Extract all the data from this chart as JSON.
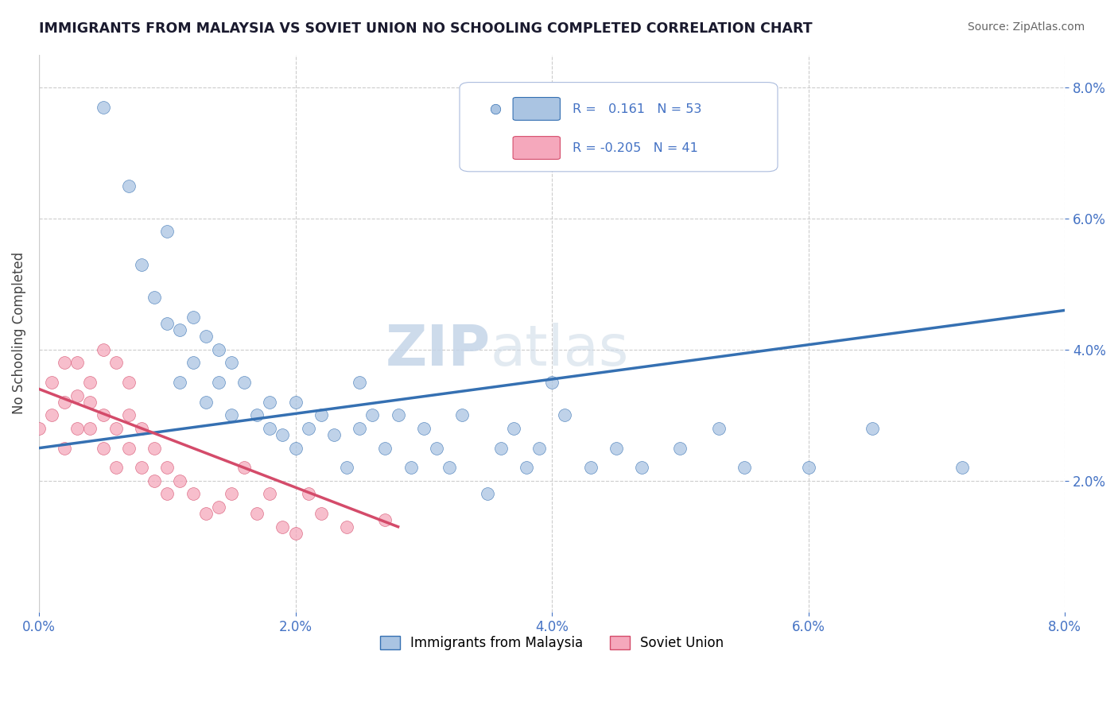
{
  "title": "IMMIGRANTS FROM MALAYSIA VS SOVIET UNION NO SCHOOLING COMPLETED CORRELATION CHART",
  "source": "Source: ZipAtlas.com",
  "ylabel": "No Schooling Completed",
  "xlim": [
    0.0,
    0.08
  ],
  "ylim": [
    0.0,
    0.085
  ],
  "ytick_values": [
    0.02,
    0.04,
    0.06,
    0.08
  ],
  "xtick_values": [
    0.0,
    0.02,
    0.04,
    0.06,
    0.08
  ],
  "legend_labels": [
    "Immigrants from Malaysia",
    "Soviet Union"
  ],
  "r_malaysia": 0.161,
  "n_malaysia": 53,
  "r_soviet": -0.205,
  "n_soviet": 41,
  "malaysia_color": "#aac4e2",
  "soviet_color": "#f5a8bc",
  "malaysia_line_color": "#3570b2",
  "soviet_line_color": "#d44b6a",
  "malaysia_scatter_x": [
    0.005,
    0.007,
    0.008,
    0.009,
    0.01,
    0.01,
    0.011,
    0.011,
    0.012,
    0.012,
    0.013,
    0.013,
    0.014,
    0.014,
    0.015,
    0.015,
    0.016,
    0.017,
    0.018,
    0.018,
    0.019,
    0.02,
    0.02,
    0.021,
    0.022,
    0.023,
    0.024,
    0.025,
    0.025,
    0.026,
    0.027,
    0.028,
    0.029,
    0.03,
    0.031,
    0.032,
    0.033,
    0.035,
    0.036,
    0.037,
    0.038,
    0.039,
    0.04,
    0.041,
    0.043,
    0.045,
    0.047,
    0.05,
    0.053,
    0.055,
    0.06,
    0.065,
    0.072
  ],
  "malaysia_scatter_y": [
    0.077,
    0.065,
    0.053,
    0.048,
    0.044,
    0.058,
    0.035,
    0.043,
    0.038,
    0.045,
    0.032,
    0.042,
    0.035,
    0.04,
    0.03,
    0.038,
    0.035,
    0.03,
    0.028,
    0.032,
    0.027,
    0.025,
    0.032,
    0.028,
    0.03,
    0.027,
    0.022,
    0.035,
    0.028,
    0.03,
    0.025,
    0.03,
    0.022,
    0.028,
    0.025,
    0.022,
    0.03,
    0.018,
    0.025,
    0.028,
    0.022,
    0.025,
    0.035,
    0.03,
    0.022,
    0.025,
    0.022,
    0.025,
    0.028,
    0.022,
    0.022,
    0.028,
    0.022
  ],
  "soviet_scatter_x": [
    0.0,
    0.001,
    0.001,
    0.002,
    0.002,
    0.002,
    0.003,
    0.003,
    0.003,
    0.004,
    0.004,
    0.004,
    0.005,
    0.005,
    0.005,
    0.006,
    0.006,
    0.006,
    0.007,
    0.007,
    0.007,
    0.008,
    0.008,
    0.009,
    0.009,
    0.01,
    0.01,
    0.011,
    0.012,
    0.013,
    0.014,
    0.015,
    0.016,
    0.017,
    0.018,
    0.019,
    0.02,
    0.021,
    0.022,
    0.024,
    0.027
  ],
  "soviet_scatter_y": [
    0.028,
    0.035,
    0.03,
    0.038,
    0.032,
    0.025,
    0.038,
    0.028,
    0.033,
    0.035,
    0.028,
    0.032,
    0.04,
    0.03,
    0.025,
    0.038,
    0.028,
    0.022,
    0.03,
    0.025,
    0.035,
    0.022,
    0.028,
    0.025,
    0.02,
    0.022,
    0.018,
    0.02,
    0.018,
    0.015,
    0.016,
    0.018,
    0.022,
    0.015,
    0.018,
    0.013,
    0.012,
    0.018,
    0.015,
    0.013,
    0.014
  ],
  "malaysia_trend_x": [
    0.0,
    0.08
  ],
  "malaysia_trend_y": [
    0.025,
    0.046
  ],
  "soviet_trend_x": [
    0.0,
    0.028
  ],
  "soviet_trend_y": [
    0.034,
    0.013
  ],
  "watermark_zip": "ZIP",
  "watermark_atlas": "atlas",
  "background_color": "#ffffff",
  "grid_color": "#cccccc",
  "axis_label_color": "#4472c4",
  "title_color": "#1a1a2e"
}
